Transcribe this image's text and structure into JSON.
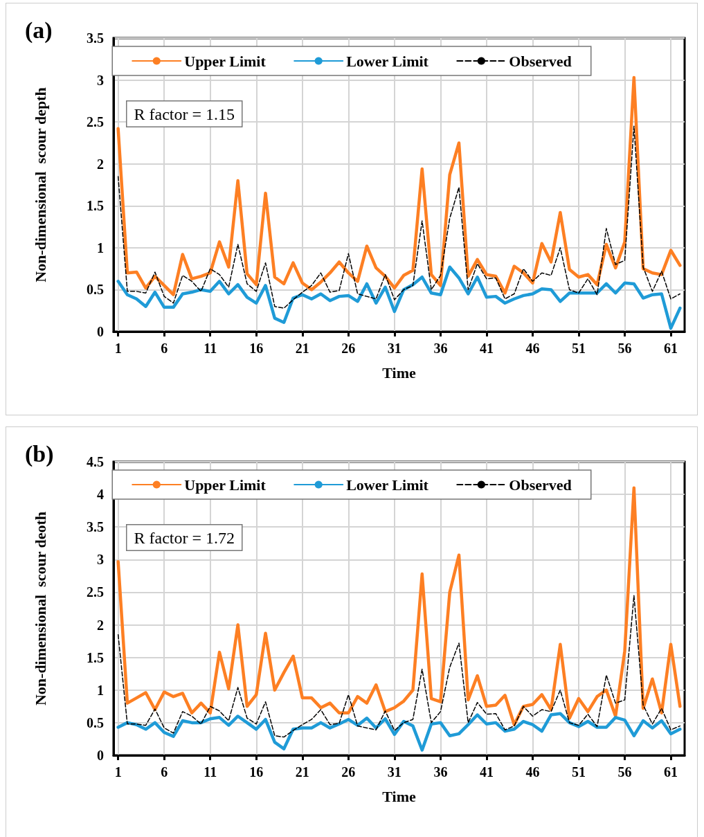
{
  "chart_data": [
    {
      "type": "line",
      "title": "(a)",
      "xlabel": "Time",
      "ylabel": "Non-dimensional  scour depth",
      "annotations": [
        "R factor = 1.15"
      ],
      "x": [
        1,
        2,
        3,
        4,
        5,
        6,
        7,
        8,
        9,
        10,
        11,
        12,
        13,
        14,
        15,
        16,
        17,
        18,
        19,
        20,
        21,
        22,
        23,
        24,
        25,
        26,
        27,
        28,
        29,
        30,
        31,
        32,
        33,
        34,
        35,
        36,
        37,
        38,
        39,
        40,
        41,
        42,
        43,
        44,
        45,
        46,
        47,
        48,
        49,
        50,
        51,
        52,
        53,
        54,
        55,
        56,
        57,
        58,
        59,
        60,
        61,
        62
      ],
      "xlim": [
        0.5,
        62.5
      ],
      "xticks": [
        1,
        6,
        11,
        16,
        21,
        26,
        31,
        36,
        41,
        46,
        51,
        56,
        61
      ],
      "ylim": [
        0,
        3.5
      ],
      "yticks": [
        0,
        0.5,
        1,
        1.5,
        2,
        2.5,
        3,
        3.5
      ],
      "grid": true,
      "legend": "top",
      "marker": "none",
      "series": [
        {
          "name": "Upper Limit",
          "color": "#fd7f23",
          "line_style": "solid",
          "values": [
            2.42,
            0.7,
            0.71,
            0.52,
            0.66,
            0.55,
            0.44,
            0.92,
            0.63,
            0.66,
            0.7,
            1.07,
            0.77,
            1.8,
            0.69,
            0.56,
            1.65,
            0.65,
            0.57,
            0.82,
            0.58,
            0.5,
            0.59,
            0.7,
            0.83,
            0.7,
            0.6,
            1.02,
            0.76,
            0.66,
            0.52,
            0.67,
            0.73,
            1.94,
            0.68,
            0.55,
            1.87,
            2.25,
            0.66,
            0.86,
            0.68,
            0.66,
            0.46,
            0.78,
            0.7,
            0.58,
            1.05,
            0.83,
            1.42,
            0.74,
            0.65,
            0.68,
            0.56,
            1.04,
            0.76,
            1.07,
            3.03,
            0.75,
            0.7,
            0.68,
            0.97,
            0.79
          ]
        },
        {
          "name": "Lower Limit",
          "color": "#1f9bd7",
          "line_style": "solid",
          "values": [
            0.6,
            0.44,
            0.39,
            0.3,
            0.47,
            0.29,
            0.29,
            0.45,
            0.47,
            0.5,
            0.48,
            0.6,
            0.45,
            0.56,
            0.41,
            0.34,
            0.55,
            0.16,
            0.11,
            0.4,
            0.44,
            0.39,
            0.45,
            0.37,
            0.42,
            0.43,
            0.36,
            0.57,
            0.34,
            0.53,
            0.24,
            0.5,
            0.56,
            0.65,
            0.46,
            0.44,
            0.77,
            0.64,
            0.45,
            0.65,
            0.41,
            0.42,
            0.34,
            0.39,
            0.43,
            0.45,
            0.51,
            0.5,
            0.36,
            0.46,
            0.46,
            0.46,
            0.46,
            0.57,
            0.46,
            0.58,
            0.57,
            0.4,
            0.44,
            0.45,
            0.04,
            0.28
          ]
        },
        {
          "name": "Observed",
          "color": "#000000",
          "line_style": "dashed",
          "values": [
            1.85,
            0.48,
            0.48,
            0.46,
            0.71,
            0.42,
            0.34,
            0.67,
            0.6,
            0.48,
            0.75,
            0.68,
            0.53,
            1.04,
            0.57,
            0.48,
            0.82,
            0.3,
            0.28,
            0.38,
            0.47,
            0.55,
            0.7,
            0.47,
            0.49,
            0.93,
            0.45,
            0.42,
            0.39,
            0.68,
            0.38,
            0.5,
            0.55,
            1.32,
            0.5,
            0.67,
            1.35,
            1.72,
            0.5,
            0.81,
            0.63,
            0.64,
            0.39,
            0.45,
            0.75,
            0.6,
            0.7,
            0.67,
            1.0,
            0.5,
            0.46,
            0.63,
            0.44,
            1.23,
            0.8,
            0.85,
            2.45,
            0.77,
            0.48,
            0.72,
            0.39,
            0.45
          ]
        }
      ]
    },
    {
      "type": "line",
      "title": "(b)",
      "xlabel": "Time",
      "ylabel": "Non-dimensional  scour deoth",
      "annotations": [
        "R factor = 1.72"
      ],
      "x": [
        1,
        2,
        3,
        4,
        5,
        6,
        7,
        8,
        9,
        10,
        11,
        12,
        13,
        14,
        15,
        16,
        17,
        18,
        19,
        20,
        21,
        22,
        23,
        24,
        25,
        26,
        27,
        28,
        29,
        30,
        31,
        32,
        33,
        34,
        35,
        36,
        37,
        38,
        39,
        40,
        41,
        42,
        43,
        44,
        45,
        46,
        47,
        48,
        49,
        50,
        51,
        52,
        53,
        54,
        55,
        56,
        57,
        58,
        59,
        60,
        61,
        62
      ],
      "xlim": [
        0.5,
        62.5
      ],
      "xticks": [
        1,
        6,
        11,
        16,
        21,
        26,
        31,
        36,
        41,
        46,
        51,
        56,
        61
      ],
      "ylim": [
        0,
        4.5
      ],
      "yticks": [
        0,
        0.5,
        1,
        1.5,
        2,
        2.5,
        3,
        3.5,
        4,
        4.5
      ],
      "grid": true,
      "legend": "top",
      "marker": "none",
      "series": [
        {
          "name": "Upper Limit",
          "color": "#fd7f23",
          "line_style": "solid",
          "values": [
            2.97,
            0.8,
            0.88,
            0.96,
            0.7,
            0.97,
            0.9,
            0.95,
            0.65,
            0.8,
            0.65,
            1.58,
            1.02,
            2.0,
            0.75,
            0.93,
            1.87,
            1.0,
            1.27,
            1.52,
            0.88,
            0.88,
            0.73,
            0.8,
            0.65,
            0.65,
            0.9,
            0.8,
            1.08,
            0.67,
            0.73,
            0.83,
            1.0,
            2.78,
            0.87,
            0.82,
            2.5,
            3.07,
            0.85,
            1.22,
            0.75,
            0.77,
            0.92,
            0.47,
            0.75,
            0.78,
            0.93,
            0.7,
            1.7,
            0.57,
            0.87,
            0.67,
            0.9,
            1.0,
            0.6,
            1.6,
            4.1,
            0.72,
            1.17,
            0.65,
            1.7,
            0.75
          ]
        },
        {
          "name": "Lower Limit",
          "color": "#1f9bd7",
          "line_style": "solid",
          "values": [
            0.43,
            0.5,
            0.47,
            0.4,
            0.5,
            0.35,
            0.29,
            0.53,
            0.5,
            0.5,
            0.56,
            0.58,
            0.46,
            0.6,
            0.5,
            0.4,
            0.55,
            0.2,
            0.1,
            0.4,
            0.42,
            0.42,
            0.5,
            0.42,
            0.48,
            0.55,
            0.46,
            0.57,
            0.42,
            0.56,
            0.32,
            0.52,
            0.45,
            0.08,
            0.48,
            0.5,
            0.3,
            0.33,
            0.47,
            0.62,
            0.48,
            0.5,
            0.37,
            0.4,
            0.52,
            0.47,
            0.37,
            0.62,
            0.64,
            0.5,
            0.44,
            0.52,
            0.43,
            0.43,
            0.58,
            0.54,
            0.3,
            0.53,
            0.42,
            0.53,
            0.33,
            0.4
          ]
        },
        {
          "name": "Observed",
          "color": "#000000",
          "line_style": "dashed",
          "values": [
            1.85,
            0.48,
            0.48,
            0.46,
            0.71,
            0.42,
            0.34,
            0.67,
            0.6,
            0.48,
            0.75,
            0.68,
            0.53,
            1.04,
            0.57,
            0.48,
            0.82,
            0.3,
            0.28,
            0.38,
            0.47,
            0.55,
            0.7,
            0.47,
            0.49,
            0.93,
            0.45,
            0.42,
            0.39,
            0.68,
            0.38,
            0.5,
            0.55,
            1.32,
            0.5,
            0.67,
            1.35,
            1.72,
            0.5,
            0.81,
            0.63,
            0.64,
            0.39,
            0.45,
            0.75,
            0.6,
            0.7,
            0.67,
            1.0,
            0.5,
            0.46,
            0.63,
            0.44,
            1.23,
            0.8,
            0.85,
            2.45,
            0.77,
            0.48,
            0.72,
            0.39,
            0.45
          ]
        }
      ]
    }
  ]
}
